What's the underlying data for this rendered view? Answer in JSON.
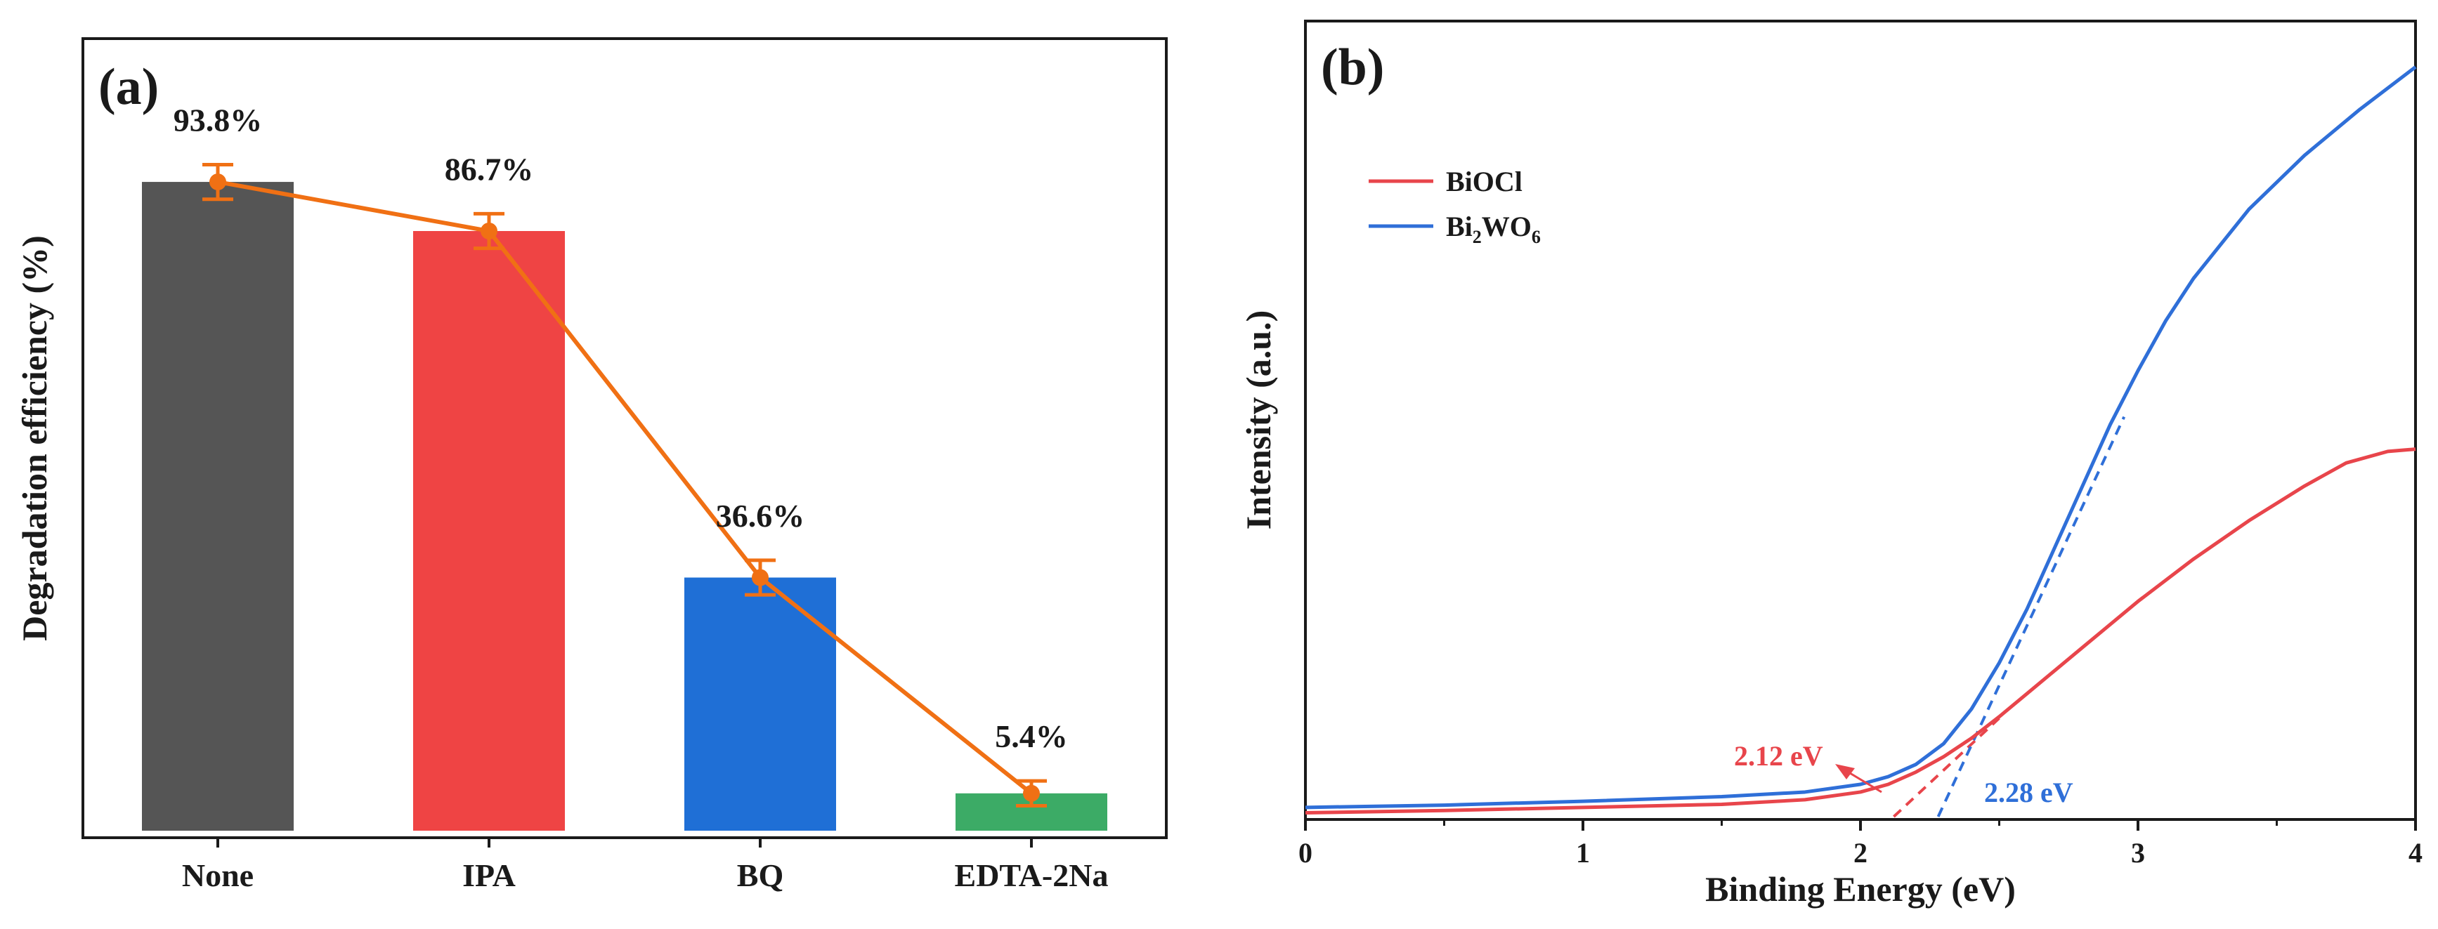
{
  "chart_data": [
    {
      "panel_label": "(a)",
      "type": "bar",
      "title": "",
      "xlabel": "",
      "ylabel": "Degradation efficiency (%)",
      "categories": [
        "None",
        "IPA",
        "BQ",
        "EDTA-2Na"
      ],
      "values": [
        93.8,
        86.7,
        36.6,
        5.4
      ],
      "errors": [
        2.5,
        2.5,
        2.5,
        1.8
      ],
      "data_labels": [
        "93.8%",
        "86.7%",
        "36.6%",
        "5.4%"
      ],
      "bar_colors": [
        "#555555",
        "#ef4444",
        "#1f6fd6",
        "#3cab66"
      ],
      "line_color": "#f07014",
      "ylim": [
        0,
        100
      ],
      "y_ticks_shown": false
    },
    {
      "panel_label": "(b)",
      "type": "line",
      "title": "",
      "xlabel": "Binding Energy (eV)",
      "ylabel": "Intensity (a.u.)",
      "xlim": [
        0,
        4
      ],
      "ylim": [
        0,
        1
      ],
      "x_ticks": [
        "0",
        "1",
        "2",
        "3",
        "4"
      ],
      "legend_position": "top-left",
      "series": [
        {
          "name": "BiOCl",
          "color": "#e8454b",
          "x": [
            0,
            0.5,
            1.0,
            1.5,
            1.8,
            2.0,
            2.1,
            2.2,
            2.3,
            2.4,
            2.5,
            2.6,
            2.8,
            3.0,
            3.2,
            3.4,
            3.6,
            3.75,
            3.9,
            4.0
          ],
          "y": [
            0.005,
            0.008,
            0.012,
            0.016,
            0.022,
            0.032,
            0.042,
            0.058,
            0.078,
            0.102,
            0.13,
            0.16,
            0.22,
            0.28,
            0.335,
            0.385,
            0.43,
            0.46,
            0.475,
            0.478
          ]
        },
        {
          "name": "Bi2WO6",
          "color": "#2f6fd8",
          "x": [
            0,
            0.5,
            1.0,
            1.5,
            1.8,
            2.0,
            2.1,
            2.2,
            2.3,
            2.4,
            2.5,
            2.6,
            2.7,
            2.8,
            2.9,
            3.0,
            3.1,
            3.2,
            3.4,
            3.6,
            3.8,
            4.0
          ],
          "y": [
            0.012,
            0.015,
            0.02,
            0.026,
            0.032,
            0.042,
            0.052,
            0.068,
            0.095,
            0.14,
            0.2,
            0.27,
            0.35,
            0.43,
            0.51,
            0.58,
            0.645,
            0.7,
            0.79,
            0.86,
            0.92,
            0.975
          ]
        }
      ],
      "tangent_lines": [
        {
          "label": "2.12 eV",
          "color": "#e8454b",
          "x": [
            2.12,
            2.5
          ],
          "y": [
            0,
            0.128
          ]
        },
        {
          "label": "2.28 eV",
          "color": "#2f6fd8",
          "x": [
            2.28,
            2.95
          ],
          "y": [
            0,
            0.52
          ]
        }
      ],
      "annotations": [
        "2.12 eV",
        "2.28 eV"
      ]
    }
  ],
  "legend": {
    "entries": [
      {
        "name": "BiOCl",
        "label": "BiOCl",
        "color": "#e8454b"
      },
      {
        "name": "Bi2WO6",
        "label_parts": [
          "Bi",
          "2",
          "WO",
          "6"
        ],
        "color": "#2f6fd8"
      }
    ]
  }
}
